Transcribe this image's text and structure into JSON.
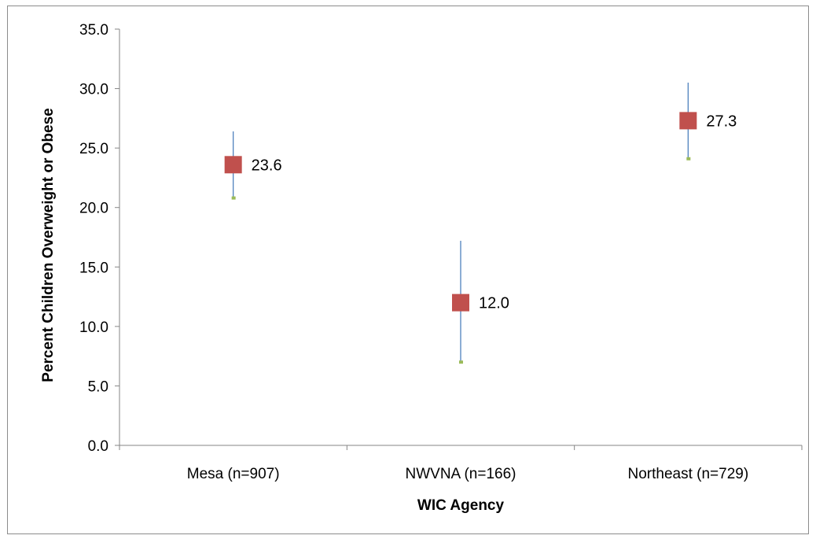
{
  "chart_data": {
    "type": "scatter",
    "title": "",
    "xlabel": "WIC Agency",
    "ylabel": "Percent Children Overweight or Obese",
    "categories": [
      "Mesa (n=907)",
      "NWVNA (n=166)",
      "Northeast (n=729)"
    ],
    "series": [
      {
        "values": [
          23.6,
          12.0,
          27.3
        ],
        "labels": [
          "23.6",
          "12.0",
          "27.3"
        ],
        "upper": [
          26.4,
          17.2,
          30.5
        ],
        "lower": [
          20.8,
          7.0,
          24.1
        ],
        "marker": "square",
        "marker_color": "#c0504d",
        "error_bar_color": "#4f81bd",
        "lower_marker_color": "#9bbb59"
      }
    ],
    "ylim": [
      0,
      35
    ],
    "yticks": [
      "0.0",
      "5.0",
      "10.0",
      "15.0",
      "20.0",
      "25.0",
      "30.0",
      "35.0"
    ],
    "ytick_values": [
      0,
      5,
      10,
      15,
      20,
      25,
      30,
      35
    ],
    "grid": false,
    "legend": "none"
  }
}
